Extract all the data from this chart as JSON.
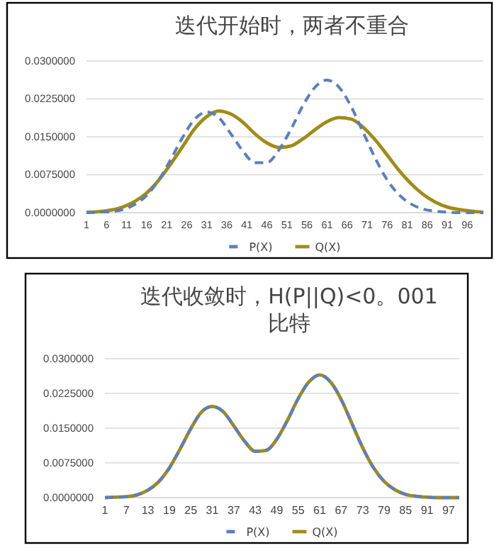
{
  "chart_data": [
    {
      "type": "line",
      "title": "迭代开始时，两者不重合",
      "x": [
        1,
        4,
        7,
        10,
        13,
        16,
        19,
        22,
        25,
        28,
        31,
        34,
        37,
        40,
        43,
        46,
        49,
        52,
        55,
        58,
        61,
        64,
        67,
        70,
        73,
        76,
        79,
        82,
        85,
        88,
        91,
        94,
        97,
        100
      ],
      "series": [
        {
          "name": "P(X)",
          "color": "#5b7ec0",
          "line_style": "dashed",
          "values": [
            0.0,
            0.0001,
            0.0002,
            0.0006,
            0.0016,
            0.0034,
            0.0064,
            0.0105,
            0.0149,
            0.0185,
            0.0199,
            0.0188,
            0.0156,
            0.0122,
            0.0099,
            0.0099,
            0.0124,
            0.0165,
            0.0212,
            0.0248,
            0.0262,
            0.0248,
            0.021,
            0.0159,
            0.0108,
            0.0065,
            0.0035,
            0.0017,
            0.0007,
            0.0003,
            0.0001,
            0.0,
            0.0,
            0.0
          ]
        },
        {
          "name": "Q(X)",
          "color": "#a08c16",
          "line_style": "solid",
          "values": [
            0.0001,
            0.0002,
            0.0005,
            0.0011,
            0.0022,
            0.0039,
            0.0064,
            0.0096,
            0.0131,
            0.0166,
            0.019,
            0.0201,
            0.0195,
            0.0179,
            0.0156,
            0.0138,
            0.0129,
            0.0132,
            0.0146,
            0.0164,
            0.018,
            0.0188,
            0.0185,
            0.0169,
            0.0144,
            0.0114,
            0.0083,
            0.0057,
            0.0036,
            0.0021,
            0.0011,
            0.0006,
            0.0003,
            0.0001
          ]
        }
      ],
      "xlim": [
        1,
        100
      ],
      "xticks": [
        1,
        6,
        11,
        16,
        21,
        26,
        31,
        36,
        41,
        46,
        51,
        56,
        61,
        66,
        71,
        76,
        81,
        86,
        91,
        96
      ],
      "ylim": [
        0,
        0.03
      ],
      "yticks": [
        {
          "value": 0,
          "label": "0.0000000"
        },
        {
          "value": 0.0075,
          "label": "0.0075000"
        },
        {
          "value": 0.015,
          "label": "0.0150000"
        },
        {
          "value": 0.0225,
          "label": "0.0225000"
        },
        {
          "value": 0.03,
          "label": "0.0300000"
        }
      ],
      "grid": "y",
      "legend": "bottom",
      "marker": "none"
    },
    {
      "type": "line",
      "title": "迭代收敛时，H(P||Q)<0。001比特",
      "x": [
        1,
        4,
        7,
        10,
        13,
        16,
        19,
        22,
        25,
        28,
        31,
        34,
        37,
        40,
        43,
        46,
        49,
        52,
        55,
        58,
        61,
        64,
        67,
        70,
        73,
        76,
        79,
        82,
        85,
        88,
        91,
        94,
        97,
        100
      ],
      "series": [
        {
          "name": "P(X)",
          "color": "#5b7ec0",
          "line_style": "dashed",
          "values": [
            0.0,
            0.0001,
            0.0002,
            0.0006,
            0.0016,
            0.0034,
            0.0064,
            0.0105,
            0.0149,
            0.0185,
            0.0197,
            0.0186,
            0.0155,
            0.0122,
            0.01,
            0.0102,
            0.0126,
            0.0167,
            0.0214,
            0.025,
            0.0265,
            0.025,
            0.0212,
            0.016,
            0.0108,
            0.0065,
            0.0035,
            0.0017,
            0.0007,
            0.0003,
            0.0001,
            0.0,
            0.0,
            0.0
          ]
        },
        {
          "name": "Q(X)",
          "color": "#a08c16",
          "line_style": "solid",
          "values": [
            0.0,
            0.0001,
            0.0002,
            0.0006,
            0.0016,
            0.0034,
            0.0064,
            0.0105,
            0.0149,
            0.0185,
            0.0197,
            0.0186,
            0.0155,
            0.0122,
            0.01,
            0.0102,
            0.0126,
            0.0167,
            0.0214,
            0.025,
            0.0265,
            0.025,
            0.0212,
            0.016,
            0.0108,
            0.0065,
            0.0035,
            0.0017,
            0.0007,
            0.0003,
            0.0001,
            0.0,
            0.0,
            0.0
          ]
        }
      ],
      "xlim": [
        1,
        100
      ],
      "xticks": [
        1,
        7,
        13,
        19,
        25,
        31,
        37,
        43,
        49,
        55,
        61,
        67,
        73,
        79,
        85,
        91,
        97
      ],
      "ylim": [
        0,
        0.03
      ],
      "yticks": [
        {
          "value": 0,
          "label": "0.0000000"
        },
        {
          "value": 0.0075,
          "label": "0.0075000"
        },
        {
          "value": 0.015,
          "label": "0.0150000"
        },
        {
          "value": 0.0225,
          "label": "0.0225000"
        },
        {
          "value": 0.03,
          "label": "0.0300000"
        }
      ],
      "grid": "y",
      "legend": "bottom",
      "marker": "none"
    }
  ]
}
